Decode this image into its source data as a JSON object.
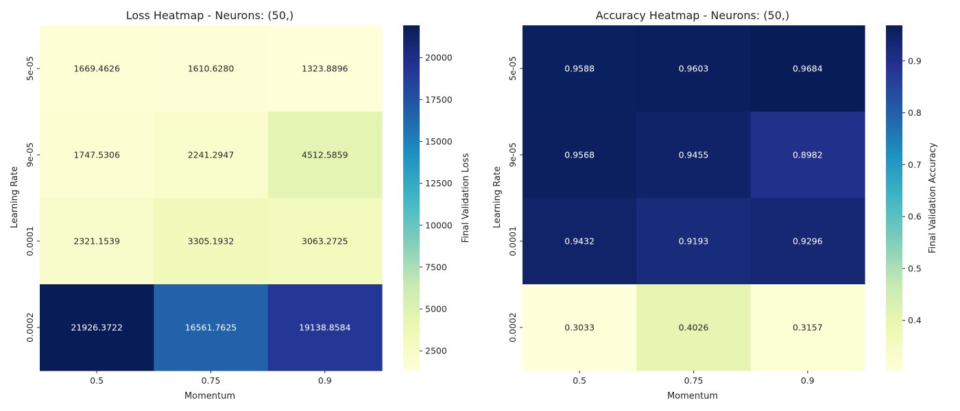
{
  "chart_data": [
    {
      "type": "heatmap",
      "title": "Loss Heatmap - Neurons: (50,)",
      "xlabel": "Momentum",
      "ylabel": "Learning Rate",
      "x_categories": [
        "0.5",
        "0.75",
        "0.9"
      ],
      "y_categories": [
        "5e-05",
        "9e-05",
        "0.0001",
        "0.0002"
      ],
      "values": [
        [
          1669.4626,
          1610.628,
          1323.8896
        ],
        [
          1747.5306,
          2241.2947,
          4512.5859
        ],
        [
          2321.1539,
          3305.1932,
          3063.2725
        ],
        [
          21926.3722,
          16561.7625,
          19138.8584
        ]
      ],
      "value_labels": [
        [
          "1669.4626",
          "1610.6280",
          "1323.8896"
        ],
        [
          "1747.5306",
          "2241.2947",
          "4512.5859"
        ],
        [
          "2321.1539",
          "3305.1932",
          "3063.2725"
        ],
        [
          "21926.3722",
          "16561.7625",
          "19138.8584"
        ]
      ],
      "colormap": "YlGnBu",
      "colorbar": {
        "label": "Final Validation Loss",
        "range": [
          1323.8896,
          21926.3722
        ],
        "ticks": [
          2500,
          5000,
          7500,
          10000,
          12500,
          15000,
          17500,
          20000
        ]
      }
    },
    {
      "type": "heatmap",
      "title": "Accuracy Heatmap - Neurons: (50,)",
      "xlabel": "Momentum",
      "ylabel": "Learning Rate",
      "x_categories": [
        "0.5",
        "0.75",
        "0.9"
      ],
      "y_categories": [
        "5e-05",
        "9e-05",
        "0.0001",
        "0.0002"
      ],
      "values": [
        [
          0.9588,
          0.9603,
          0.9684
        ],
        [
          0.9568,
          0.9455,
          0.8982
        ],
        [
          0.9432,
          0.9193,
          0.9296
        ],
        [
          0.3033,
          0.4026,
          0.3157
        ]
      ],
      "value_labels": [
        [
          "0.9588",
          "0.9603",
          "0.9684"
        ],
        [
          "0.9568",
          "0.9455",
          "0.8982"
        ],
        [
          "0.9432",
          "0.9193",
          "0.9296"
        ],
        [
          "0.3033",
          "0.4026",
          "0.3157"
        ]
      ],
      "colormap": "YlGnBu",
      "colorbar": {
        "label": "Final Validation Accuracy",
        "range": [
          0.3033,
          0.9684
        ],
        "ticks": [
          0.4,
          0.5,
          0.6,
          0.7,
          0.8,
          0.9
        ]
      }
    }
  ]
}
